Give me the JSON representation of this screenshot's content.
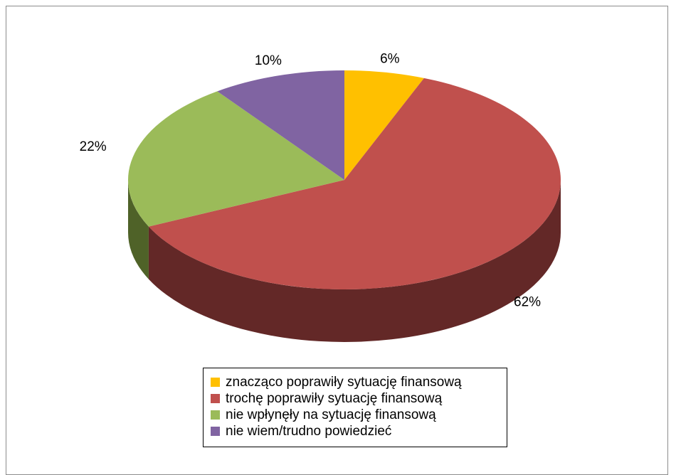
{
  "chart_data": {
    "type": "pie",
    "title": "",
    "categories": [
      "znacząco poprawiły sytuację finansową",
      "trochę poprawiły sytuację finansową",
      "nie wpłynęły na sytuację finansową",
      "nie wiem/trudno powiedzieć"
    ],
    "values": [
      6,
      62,
      22,
      10
    ],
    "labels": [
      "6%",
      "62%",
      "22%",
      "10%"
    ],
    "colors": [
      "#FFC000",
      "#C0504D",
      "#9BBB59",
      "#8064A2"
    ],
    "side_colors": [
      "#7F6000",
      "#632827",
      "#4F6228",
      "#403151"
    ],
    "legend_position": "bottom",
    "style": "3d"
  }
}
